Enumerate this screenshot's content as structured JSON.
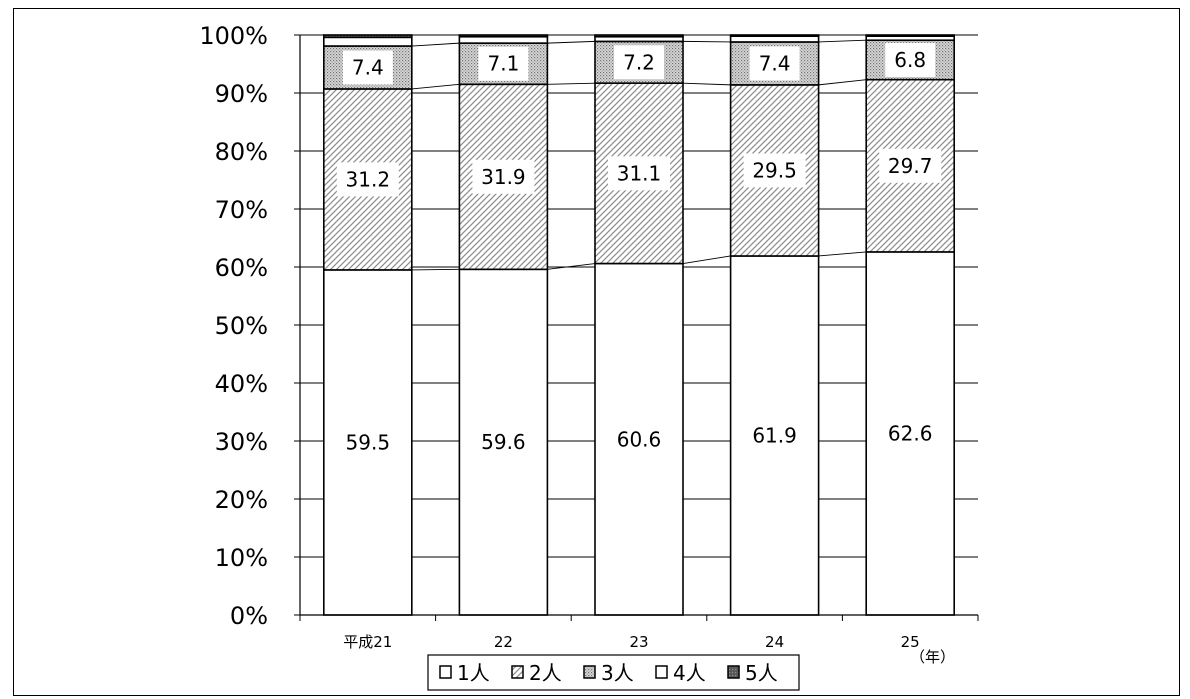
{
  "chart_data": {
    "type": "bar",
    "stacked": true,
    "categories": [
      "平成21",
      "22",
      "23",
      "24",
      "25"
    ],
    "series": [
      {
        "name": "1人",
        "values": [
          59.5,
          59.6,
          60.6,
          61.9,
          62.6
        ],
        "labels": [
          "59.5",
          "59.6",
          "60.6",
          "61.9",
          "62.6"
        ]
      },
      {
        "name": "2人",
        "values": [
          31.2,
          31.9,
          31.1,
          29.5,
          29.7
        ],
        "labels": [
          "31.2",
          "31.9",
          "31.1",
          "29.5",
          "29.7"
        ]
      },
      {
        "name": "3人",
        "values": [
          7.4,
          7.1,
          7.2,
          7.4,
          6.8
        ],
        "labels": [
          "7.4",
          "7.1",
          "7.2",
          "7.4",
          "6.8"
        ]
      },
      {
        "name": "4人",
        "values": [
          1.5,
          1.1,
          0.8,
          1.0,
          0.7
        ]
      },
      {
        "name": "5人",
        "values": [
          0.4,
          0.3,
          0.3,
          0.2,
          0.2
        ]
      }
    ],
    "y_ticks": [
      "0%",
      "10%",
      "20%",
      "30%",
      "40%",
      "50%",
      "60%",
      "70%",
      "80%",
      "90%",
      "100%"
    ],
    "ylim": [
      0,
      100
    ],
    "x_unit": "（年）",
    "grid": true,
    "legend": "bottom",
    "colors": {
      "bar_stroke": "#000000",
      "grid": "#000000",
      "fill": "#ffffff",
      "hatch": "#808080"
    }
  }
}
